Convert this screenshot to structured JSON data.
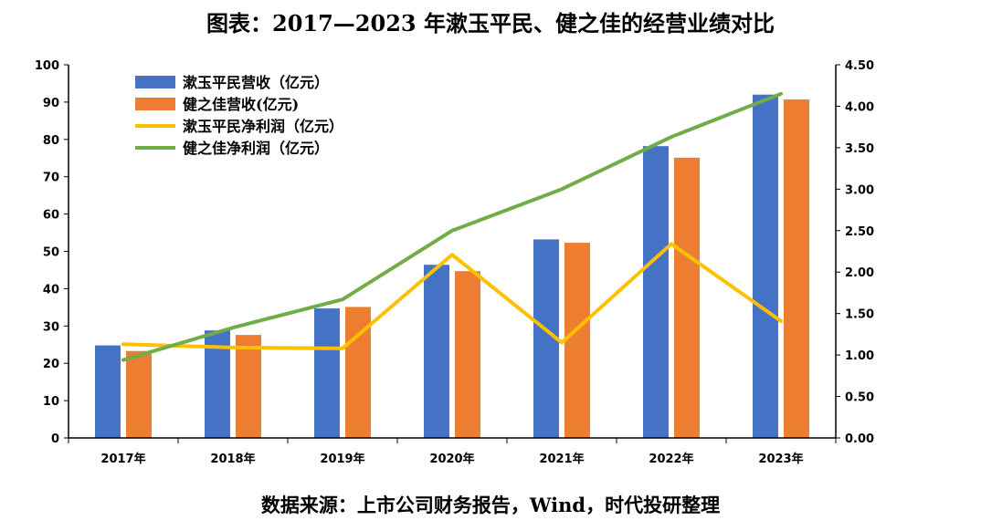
{
  "chart_data": {
    "type": "bar",
    "title": "图表：2017—2023 年漱玉平民、健之佳的经营业绩对比",
    "categories": [
      "2017年",
      "2018年",
      "2019年",
      "2020年",
      "2021年",
      "2022年",
      "2023年"
    ],
    "series": [
      {
        "name": "漱玉平民营收（亿元）",
        "type": "bar",
        "axis": "left",
        "color": "#4472C4",
        "values": [
          24.8,
          28.8,
          34.7,
          46.4,
          53.2,
          78.2,
          92.0
        ]
      },
      {
        "name": "健之佳营收(亿元)",
        "type": "bar",
        "axis": "left",
        "color": "#ED7D31",
        "values": [
          23.3,
          27.6,
          35.1,
          44.7,
          52.3,
          75.1,
          90.7
        ]
      },
      {
        "name": "漱玉平民净利润（亿元）",
        "type": "line",
        "axis": "right",
        "color": "#FFC000",
        "values": [
          1.13,
          1.09,
          1.08,
          2.21,
          1.15,
          2.34,
          1.41
        ]
      },
      {
        "name": "健之佳净利润（亿元）",
        "type": "line",
        "axis": "right",
        "color": "#70AD47",
        "values": [
          0.94,
          1.33,
          1.67,
          2.5,
          3.0,
          3.63,
          4.15
        ]
      }
    ],
    "ylim_left": [
      0,
      100
    ],
    "yticks_left": [
      "0",
      "10",
      "20",
      "30",
      "40",
      "50",
      "60",
      "70",
      "80",
      "90",
      "100"
    ],
    "ylim_right": [
      0,
      4.5
    ],
    "yticks_right": [
      "0.00",
      "0.50",
      "1.00",
      "1.50",
      "2.00",
      "2.50",
      "3.00",
      "3.50",
      "4.00",
      "4.50"
    ],
    "grid": false,
    "legend": "top-left"
  },
  "source": "数据来源：上市公司财务报告，Wind，时代投研整理"
}
